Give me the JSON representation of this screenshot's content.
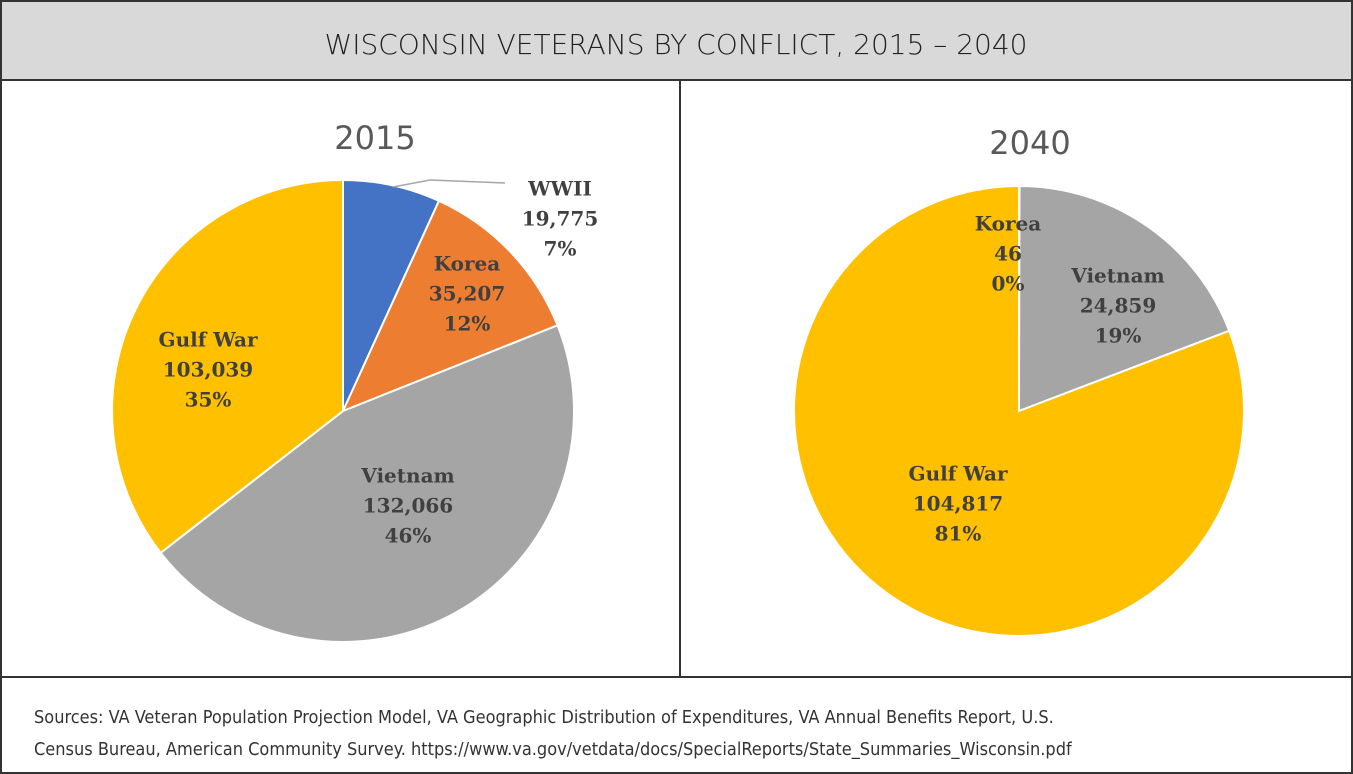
{
  "title": "WISCONSIN VETERANS BY CONFLICT, 2015 – 2040",
  "chart_data": [
    {
      "type": "pie",
      "title": "2015",
      "categories": [
        "WWII",
        "Korea",
        "Vietnam",
        "Gulf War"
      ],
      "values": [
        19775,
        35207,
        132066,
        103039
      ],
      "value_labels": [
        "19,775",
        "35,207",
        "132,066",
        "103,039"
      ],
      "percent_labels": [
        "7%",
        "12%",
        "46%",
        "35%"
      ],
      "colors": [
        "#4472c4",
        "#ed7d31",
        "#a5a5a5",
        "#ffc000"
      ]
    },
    {
      "type": "pie",
      "title": "2040",
      "categories": [
        "Korea",
        "Vietnam",
        "Gulf War"
      ],
      "values": [
        46,
        24859,
        104817
      ],
      "value_labels": [
        "46",
        "24,859",
        "104,817"
      ],
      "percent_labels": [
        "0%",
        "19%",
        "81%"
      ],
      "colors": [
        "#ed7d31",
        "#a5a5a5",
        "#ffc000"
      ]
    }
  ],
  "sources": [
    "Sources: VA Veteran Population Projection Model, VA Geographic Distribution of Expenditures, VA Annual Benefits Report, U.S.",
    "Census Bureau, American Community Survey.  https://www.va.gov/vetdata/docs/SpecialReports/State_Summaries_Wisconsin.pdf"
  ]
}
